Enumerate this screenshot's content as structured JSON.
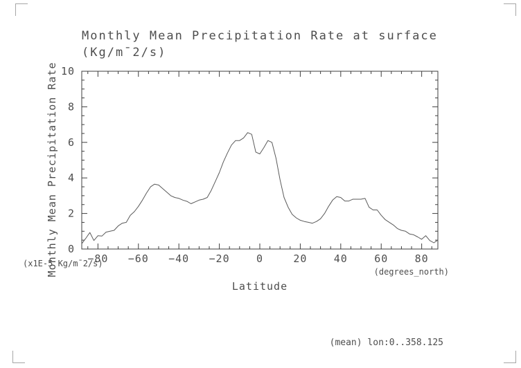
{
  "title": {
    "line1": "Monthly Mean Precipitation Rate at surface",
    "line2": "(Kg/m¯2/s)"
  },
  "axes": {
    "y_label": "Monthly Mean Precipitation Rate",
    "y_units": "(x1E-5 Kg/m¯2/s)",
    "x_label": "Latitude",
    "x_units": "(degrees_north)"
  },
  "footer": {
    "annotation": "(mean) lon:0..358.125"
  },
  "colors": {
    "axis": "#3d3d3d",
    "line": "#5a5a5a",
    "text": "#4d4d4d",
    "corner_marks": "#a6a6a6"
  },
  "chart_data": {
    "type": "line",
    "title": "Monthly Mean Precipitation Rate at surface (Kg/m¯2/s)",
    "xlabel": "Latitude (degrees_north)",
    "ylabel": "Monthly Mean Precipitation Rate (x1E-5 Kg/m¯2/s)",
    "xlim": [
      -88,
      88
    ],
    "ylim": [
      0,
      10
    ],
    "x_ticks_major": [
      -80,
      -60,
      -40,
      -20,
      0,
      20,
      40,
      60,
      80
    ],
    "x_tick_minor_step": 5,
    "y_ticks_major": [
      0,
      2,
      4,
      6,
      8,
      10
    ],
    "y_tick_minor_step": 0.5,
    "grid": false,
    "legend": "none",
    "x": [
      -88,
      -86,
      -84,
      -82,
      -80,
      -78,
      -76,
      -74,
      -72,
      -70,
      -68,
      -66,
      -64,
      -62,
      -60,
      -58,
      -56,
      -54,
      -52,
      -50,
      -48,
      -46,
      -44,
      -42,
      -40,
      -38,
      -36,
      -34,
      -32,
      -30,
      -28,
      -26,
      -24,
      -22,
      -20,
      -18,
      -16,
      -14,
      -12,
      -10,
      -8,
      -6,
      -4,
      -2,
      0,
      2,
      4,
      6,
      8,
      10,
      12,
      14,
      16,
      18,
      20,
      22,
      24,
      26,
      28,
      30,
      32,
      34,
      36,
      38,
      40,
      42,
      44,
      46,
      48,
      50,
      52,
      54,
      56,
      58,
      60,
      62,
      64,
      66,
      68,
      70,
      72,
      74,
      76,
      78,
      80,
      82,
      84,
      86,
      88
    ],
    "y": [
      0.3,
      0.6,
      0.93,
      0.48,
      0.75,
      0.73,
      0.95,
      1.0,
      1.05,
      1.3,
      1.45,
      1.5,
      1.9,
      2.1,
      2.4,
      2.75,
      3.15,
      3.5,
      3.65,
      3.6,
      3.4,
      3.2,
      3.0,
      2.9,
      2.85,
      2.75,
      2.68,
      2.55,
      2.65,
      2.75,
      2.8,
      2.9,
      3.3,
      3.8,
      4.3,
      4.9,
      5.4,
      5.85,
      6.1,
      6.1,
      6.25,
      6.55,
      6.45,
      5.45,
      5.35,
      5.7,
      6.1,
      6.0,
      5.1,
      3.9,
      2.9,
      2.35,
      1.95,
      1.75,
      1.62,
      1.55,
      1.5,
      1.45,
      1.55,
      1.7,
      2.0,
      2.4,
      2.75,
      2.95,
      2.9,
      2.7,
      2.7,
      2.8,
      2.8,
      2.8,
      2.85,
      2.35,
      2.2,
      2.2,
      1.9,
      1.65,
      1.5,
      1.35,
      1.15,
      1.05,
      1.0,
      0.85,
      0.8,
      0.68,
      0.55,
      0.75,
      0.48,
      0.35,
      0.5
    ]
  }
}
